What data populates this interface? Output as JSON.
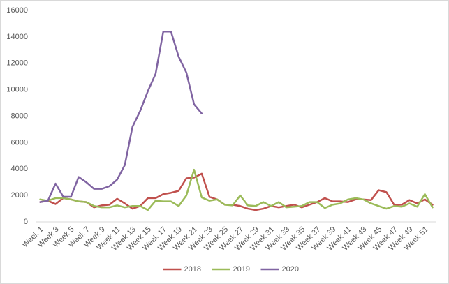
{
  "chart_data": {
    "type": "line",
    "categories": [
      "Week 1",
      null,
      "Week 3",
      null,
      "Week 5",
      null,
      "Week 7",
      null,
      "Week 9",
      null,
      "Week 11",
      null,
      "Week 13",
      null,
      "Week 15",
      null,
      "Week 17",
      null,
      "Week 19",
      null,
      "Week 21",
      null,
      "Week 23",
      null,
      "Week 25",
      null,
      "Week 27",
      null,
      "Week 29",
      null,
      "Week 31",
      null,
      "Week 33",
      null,
      "Week 35",
      null,
      "Week 37",
      null,
      "Week 39",
      null,
      "Week 41",
      null,
      "Week 43",
      null,
      "Week 45",
      null,
      "Week 47",
      null,
      "Week 49",
      null,
      "Week 51",
      null
    ],
    "series": [
      {
        "name": "2018",
        "color": "#c0504d",
        "values": [
          1500,
          1600,
          1350,
          1800,
          1700,
          1550,
          1500,
          1100,
          1250,
          1300,
          1750,
          1400,
          1000,
          1200,
          1800,
          1800,
          2100,
          2200,
          2350,
          3300,
          3350,
          3650,
          1900,
          1700,
          1300,
          1300,
          1200,
          1000,
          900,
          1000,
          1200,
          1100,
          1200,
          1300,
          1100,
          1300,
          1500,
          1800,
          1550,
          1550,
          1500,
          1700,
          1700,
          1650,
          2400,
          2250,
          1300,
          1300,
          1650,
          1400,
          1700,
          1300
        ]
      },
      {
        "name": "2019",
        "color": "#9bbb59",
        "values": [
          1700,
          1600,
          1800,
          1800,
          1700,
          1550,
          1500,
          1200,
          1100,
          1100,
          1250,
          1100,
          1200,
          1200,
          900,
          1600,
          1550,
          1550,
          1200,
          2000,
          3950,
          1850,
          1600,
          1700,
          1300,
          1250,
          2000,
          1250,
          1200,
          1500,
          1200,
          1500,
          1100,
          1150,
          1200,
          1500,
          1500,
          1050,
          1300,
          1400,
          1700,
          1800,
          1700,
          1400,
          1200,
          1000,
          1200,
          1150,
          1400,
          1150,
          2100,
          1100
        ]
      },
      {
        "name": "2020",
        "color": "#8064a2",
        "values": [
          1500,
          1600,
          2900,
          1900,
          1900,
          3400,
          3000,
          2500,
          2500,
          2700,
          3200,
          4300,
          7200,
          8400,
          9900,
          11200,
          14400,
          14400,
          12500,
          11300,
          8900,
          8200,
          null,
          null,
          null,
          null,
          null,
          null,
          null,
          null,
          null,
          null,
          null,
          null,
          null,
          null,
          null,
          null,
          null,
          null,
          null,
          null,
          null,
          null,
          null,
          null,
          null,
          null,
          null,
          null,
          null,
          null
        ]
      }
    ],
    "ylim": [
      0,
      16000
    ],
    "yticks": [
      0,
      2000,
      4000,
      6000,
      8000,
      10000,
      12000,
      14000,
      16000
    ],
    "grid": false,
    "legend": "bottom"
  }
}
